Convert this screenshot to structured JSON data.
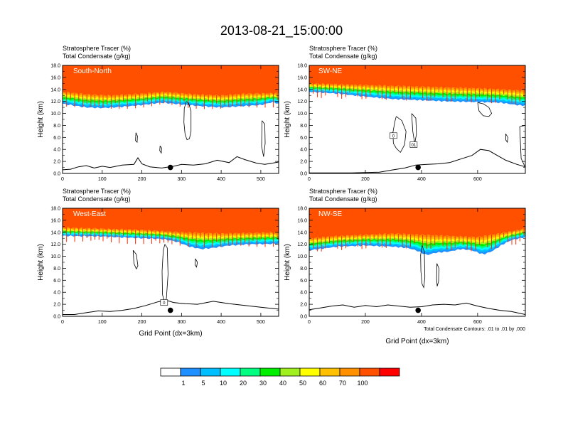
{
  "figure": {
    "title": "2013-08-21_15:00:00",
    "note": "Total Condensate Contours: .01 to .01 by .000"
  },
  "colorbar": {
    "labels": [
      "1",
      "5",
      "10",
      "20",
      "30",
      "40",
      "50",
      "60",
      "70",
      "100"
    ],
    "colors": [
      "#ffffff",
      "#1e90ff",
      "#00bfff",
      "#00ffff",
      "#00ff80",
      "#00ee00",
      "#a0f020",
      "#ffff00",
      "#ffc000",
      "#ff9000",
      "#ff5000",
      "#ff0000"
    ]
  },
  "chart_data": [
    {
      "type": "heatmap",
      "panel": "South-North",
      "header_line1": "Stratosphere Tracer   (%)",
      "header_line2": "Total Condensate   (g/kg)",
      "xlabel": "",
      "ylabel": "Height (km)",
      "xlim": [
        0,
        545
      ],
      "ylim": [
        0,
        18
      ],
      "xticks": [
        0,
        100,
        200,
        300,
        400,
        500
      ],
      "yticks": [
        "0.0",
        "2.0",
        "4.0",
        "6.0",
        "8.0",
        "10.0",
        "12.0",
        "14.0",
        "16.0",
        "18.0"
      ],
      "tracer_base_km": [
        [
          0,
          11.6
        ],
        [
          30,
          11.3
        ],
        [
          60,
          11.0
        ],
        [
          100,
          10.9
        ],
        [
          150,
          11.1
        ],
        [
          200,
          11.4
        ],
        [
          250,
          11.8
        ],
        [
          300,
          11.5
        ],
        [
          350,
          11.2
        ],
        [
          400,
          11.0
        ],
        [
          450,
          11.2
        ],
        [
          500,
          11.4
        ],
        [
          530,
          11.9
        ],
        [
          545,
          11.6
        ]
      ],
      "tracer_band_km": [
        [
          0,
          13.6
        ],
        [
          60,
          13.2
        ],
        [
          120,
          13.0
        ],
        [
          200,
          13.3
        ],
        [
          260,
          13.6
        ],
        [
          330,
          13.2
        ],
        [
          400,
          13.0
        ],
        [
          460,
          13.3
        ],
        [
          545,
          13.4
        ]
      ],
      "terrain_km": [
        [
          0,
          0.6
        ],
        [
          20,
          0.7
        ],
        [
          40,
          1.1
        ],
        [
          60,
          1.3
        ],
        [
          80,
          0.9
        ],
        [
          100,
          1.2
        ],
        [
          120,
          1.0
        ],
        [
          150,
          1.4
        ],
        [
          180,
          1.5
        ],
        [
          190,
          2.6
        ],
        [
          200,
          1.6
        ],
        [
          220,
          1.1
        ],
        [
          250,
          0.9
        ],
        [
          280,
          1.2
        ],
        [
          300,
          1.5
        ],
        [
          330,
          1.4
        ],
        [
          360,
          1.6
        ],
        [
          390,
          2.2
        ],
        [
          420,
          1.8
        ],
        [
          440,
          2.8
        ],
        [
          460,
          2.3
        ],
        [
          490,
          1.7
        ],
        [
          510,
          1.5
        ],
        [
          545,
          1.9
        ]
      ],
      "point": {
        "x": 272,
        "y": 1.0
      },
      "contours": [
        {
          "x": [
            312,
            318,
            324,
            324,
            320,
            314,
            309,
            306,
            307,
            312
          ],
          "y": [
            12.0,
            11.7,
            10.4,
            7.0,
            5.8,
            5.6,
            6.5,
            8.5,
            10.8,
            12.0
          ]
        },
        {
          "x": [
            503,
            510,
            511,
            507,
            502,
            503
          ],
          "y": [
            8.8,
            8.2,
            5.0,
            2.8,
            4.5,
            8.8
          ]
        },
        {
          "x": [
            185,
            189,
            188,
            184,
            185
          ],
          "y": [
            6.8,
            6.2,
            5.2,
            5.5,
            6.8
          ]
        },
        {
          "x": [
            246,
            250,
            249,
            245,
            246
          ],
          "y": [
            4.6,
            4.2,
            3.4,
            3.8,
            4.6
          ]
        }
      ]
    },
    {
      "type": "heatmap",
      "panel": "SW-NE",
      "header_line1": "Stratosphere Tracer   (%)",
      "header_line2": "Total Condensate   (g/kg)",
      "xlabel": "",
      "ylabel": "Height (km)",
      "xlim": [
        0,
        770
      ],
      "ylim": [
        0,
        18
      ],
      "xticks": [
        0,
        200,
        400,
        600
      ],
      "yticks": [
        "0.0",
        "2.0",
        "4.0",
        "6.0",
        "8.0",
        "10.0",
        "12.0",
        "14.0",
        "16.0",
        "18.0"
      ],
      "tracer_base_km": [
        [
          0,
          13.6
        ],
        [
          100,
          13.3
        ],
        [
          200,
          12.8
        ],
        [
          300,
          12.4
        ],
        [
          400,
          12.2
        ],
        [
          500,
          12.0
        ],
        [
          600,
          11.9
        ],
        [
          680,
          11.8
        ],
        [
          740,
          11.4
        ],
        [
          770,
          11.3
        ]
      ],
      "tracer_band_km": [
        [
          0,
          15.0
        ],
        [
          150,
          14.8
        ],
        [
          300,
          14.6
        ],
        [
          450,
          14.4
        ],
        [
          600,
          14.2
        ],
        [
          770,
          13.8
        ]
      ],
      "terrain_km": [
        [
          0,
          0.1
        ],
        [
          150,
          0.1
        ],
        [
          250,
          0.2
        ],
        [
          300,
          0.6
        ],
        [
          340,
          0.9
        ],
        [
          380,
          1.4
        ],
        [
          420,
          1.5
        ],
        [
          460,
          1.6
        ],
        [
          500,
          1.8
        ],
        [
          540,
          2.4
        ],
        [
          580,
          3.0
        ],
        [
          610,
          4.0
        ],
        [
          640,
          3.8
        ],
        [
          670,
          3.0
        ],
        [
          700,
          2.2
        ],
        [
          740,
          1.5
        ],
        [
          770,
          1.1
        ]
      ],
      "point": {
        "x": 388,
        "y": 1.0
      },
      "contours": [
        {
          "x": [
            600,
            620,
            640,
            650,
            640,
            620,
            605,
            600
          ],
          "y": [
            11.8,
            11.6,
            11.0,
            10.0,
            9.5,
            9.6,
            10.4,
            11.8
          ]
        },
        {
          "x": [
            310,
            330,
            345,
            340,
            325,
            310,
            300,
            298,
            305,
            310
          ],
          "y": [
            9.5,
            8.8,
            7.0,
            4.8,
            3.5,
            4.2,
            5.0,
            6.8,
            8.6,
            9.5
          ]
        },
        {
          "x": [
            365,
            380,
            382,
            376,
            369,
            365
          ],
          "y": [
            10.0,
            9.2,
            6.5,
            5.0,
            7.0,
            10.0
          ]
        },
        {
          "x": [
            700,
            708,
            706,
            700,
            700
          ],
          "y": [
            6.6,
            6.0,
            5.2,
            5.6,
            6.6
          ]
        },
        {
          "x": [
            750,
            770,
            770,
            755,
            750
          ],
          "y": [
            7.8,
            8.0,
            1.0,
            2.5,
            7.8
          ]
        }
      ],
      "labels": [
        {
          "text": "0",
          "x": 300,
          "y": 6.3
        },
        {
          "text": "01",
          "x": 372,
          "y": 4.8
        }
      ]
    },
    {
      "type": "heatmap",
      "panel": "West-East",
      "header_line1": "Stratosphere Tracer   (%)",
      "header_line2": "Total Condensate   (g/kg)",
      "xlabel": "Grid Point (dx=3km)",
      "ylabel": "Height (km)",
      "xlim": [
        0,
        545
      ],
      "ylim": [
        0,
        18
      ],
      "xticks": [
        0,
        100,
        200,
        300,
        400,
        500
      ],
      "yticks": [
        "0.0",
        "2.0",
        "4.0",
        "6.0",
        "8.0",
        "10.0",
        "12.0",
        "14.0",
        "16.0",
        "18.0"
      ],
      "tracer_base_km": [
        [
          0,
          13.4
        ],
        [
          100,
          13.3
        ],
        [
          200,
          13.0
        ],
        [
          250,
          12.9
        ],
        [
          290,
          12.4
        ],
        [
          320,
          11.6
        ],
        [
          350,
          11.2
        ],
        [
          380,
          11.4
        ],
        [
          420,
          11.8
        ],
        [
          470,
          12.0
        ],
        [
          545,
          12.1
        ]
      ],
      "tracer_band_km": [
        [
          0,
          14.8
        ],
        [
          100,
          14.6
        ],
        [
          200,
          14.4
        ],
        [
          300,
          14.0
        ],
        [
          400,
          13.8
        ],
        [
          545,
          14.0
        ]
      ],
      "terrain_km": [
        [
          0,
          0.3
        ],
        [
          30,
          0.3
        ],
        [
          60,
          0.6
        ],
        [
          90,
          0.9
        ],
        [
          120,
          0.8
        ],
        [
          150,
          1.0
        ],
        [
          180,
          1.3
        ],
        [
          210,
          1.8
        ],
        [
          240,
          2.4
        ],
        [
          260,
          2.7
        ],
        [
          280,
          2.3
        ],
        [
          310,
          2.1
        ],
        [
          340,
          2.0
        ],
        [
          380,
          2.5
        ],
        [
          420,
          2.1
        ],
        [
          460,
          1.8
        ],
        [
          500,
          1.5
        ],
        [
          545,
          1.2
        ]
      ],
      "point": {
        "x": 272,
        "y": 1.0
      },
      "contours": [
        {
          "x": [
            258,
            264,
            266,
            262,
            258,
            252,
            251,
            254,
            258
          ],
          "y": [
            12.0,
            11.4,
            7.0,
            3.0,
            2.2,
            3.6,
            7.5,
            11.0,
            12.0
          ]
        },
        {
          "x": [
            178,
            186,
            190,
            186,
            180,
            178
          ],
          "y": [
            11.0,
            10.3,
            8.4,
            7.9,
            8.8,
            11.0
          ]
        },
        {
          "x": [
            335,
            340,
            338,
            334,
            335
          ],
          "y": [
            9.6,
            9.0,
            8.2,
            8.6,
            9.6
          ]
        }
      ],
      "labels": [
        {
          "text": "0",
          "x": 256,
          "y": 2.3
        }
      ]
    },
    {
      "type": "heatmap",
      "panel": "NW-SE",
      "header_line1": "Stratosphere Tracer   (%)",
      "header_line2": "Total Condensate   (g/kg)",
      "xlabel": "Grid Point (dx=3km)",
      "ylabel": "Height (km)",
      "xlim": [
        0,
        770
      ],
      "ylim": [
        0,
        18
      ],
      "xticks": [
        0,
        200,
        400,
        600
      ],
      "yticks": [
        "0.0",
        "2.0",
        "4.0",
        "6.0",
        "8.0",
        "10.0",
        "12.0",
        "14.0",
        "16.0",
        "18.0"
      ],
      "tracer_base_km": [
        [
          0,
          11.0
        ],
        [
          100,
          11.6
        ],
        [
          200,
          11.8
        ],
        [
          300,
          11.6
        ],
        [
          350,
          11.4
        ],
        [
          380,
          11.0
        ],
        [
          420,
          10.2
        ],
        [
          450,
          10.6
        ],
        [
          500,
          10.8
        ],
        [
          540,
          11.2
        ],
        [
          580,
          11.0
        ],
        [
          620,
          10.3
        ],
        [
          650,
          10.8
        ],
        [
          690,
          12.0
        ],
        [
          720,
          12.7
        ],
        [
          770,
          13.2
        ]
      ],
      "tracer_band_km": [
        [
          0,
          13.0
        ],
        [
          100,
          13.4
        ],
        [
          200,
          13.6
        ],
        [
          300,
          13.8
        ],
        [
          400,
          13.6
        ],
        [
          500,
          13.4
        ],
        [
          600,
          13.2
        ],
        [
          700,
          14.0
        ],
        [
          770,
          14.6
        ]
      ],
      "terrain_km": [
        [
          0,
          1.1
        ],
        [
          40,
          1.4
        ],
        [
          80,
          1.7
        ],
        [
          120,
          1.9
        ],
        [
          160,
          1.5
        ],
        [
          200,
          1.8
        ],
        [
          240,
          1.6
        ],
        [
          280,
          1.9
        ],
        [
          320,
          1.7
        ],
        [
          360,
          1.5
        ],
        [
          400,
          1.6
        ],
        [
          440,
          1.9
        ],
        [
          480,
          2.0
        ],
        [
          520,
          1.9
        ],
        [
          560,
          2.2
        ],
        [
          600,
          1.7
        ],
        [
          640,
          1.3
        ],
        [
          680,
          1.0
        ],
        [
          720,
          0.8
        ],
        [
          770,
          0.3
        ]
      ],
      "point": {
        "x": 388,
        "y": 1.0
      },
      "contours": [
        {
          "x": [
            402,
            410,
            412,
            408,
            402,
            398,
            397,
            402
          ],
          "y": [
            11.8,
            10.8,
            6.5,
            4.8,
            5.4,
            7.5,
            10.2,
            11.8
          ]
        },
        {
          "x": [
            455,
            462,
            461,
            456,
            454,
            455
          ],
          "y": [
            8.8,
            8.0,
            5.8,
            5.0,
            6.4,
            8.8
          ]
        }
      ]
    }
  ]
}
